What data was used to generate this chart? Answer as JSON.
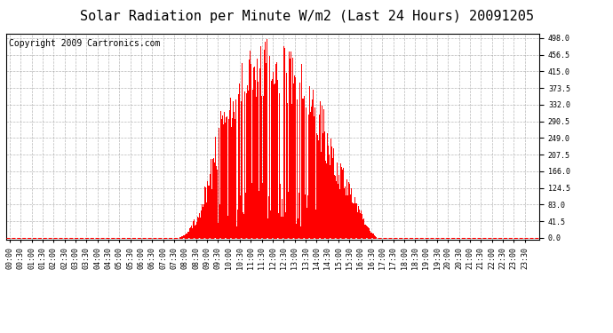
{
  "title": "Solar Radiation per Minute W/m2 (Last 24 Hours) 20091205",
  "copyright": "Copyright 2009 Cartronics.com",
  "bg_color": "#ffffff",
  "plot_bg_color": "#ffffff",
  "bar_color": "#ff0000",
  "grid_color": "#999999",
  "y_ticks": [
    0.0,
    41.5,
    83.0,
    124.5,
    166.0,
    207.5,
    249.0,
    290.5,
    332.0,
    373.5,
    415.0,
    456.5,
    498.0
  ],
  "ylim_min": -5,
  "ylim_max": 510,
  "n_points": 1440,
  "sunrise_index": 455,
  "sunset_index": 1005,
  "peak_index": 700,
  "peak_value": 498.0,
  "title_fontsize": 11,
  "copyright_fontsize": 7,
  "tick_fontsize": 6
}
